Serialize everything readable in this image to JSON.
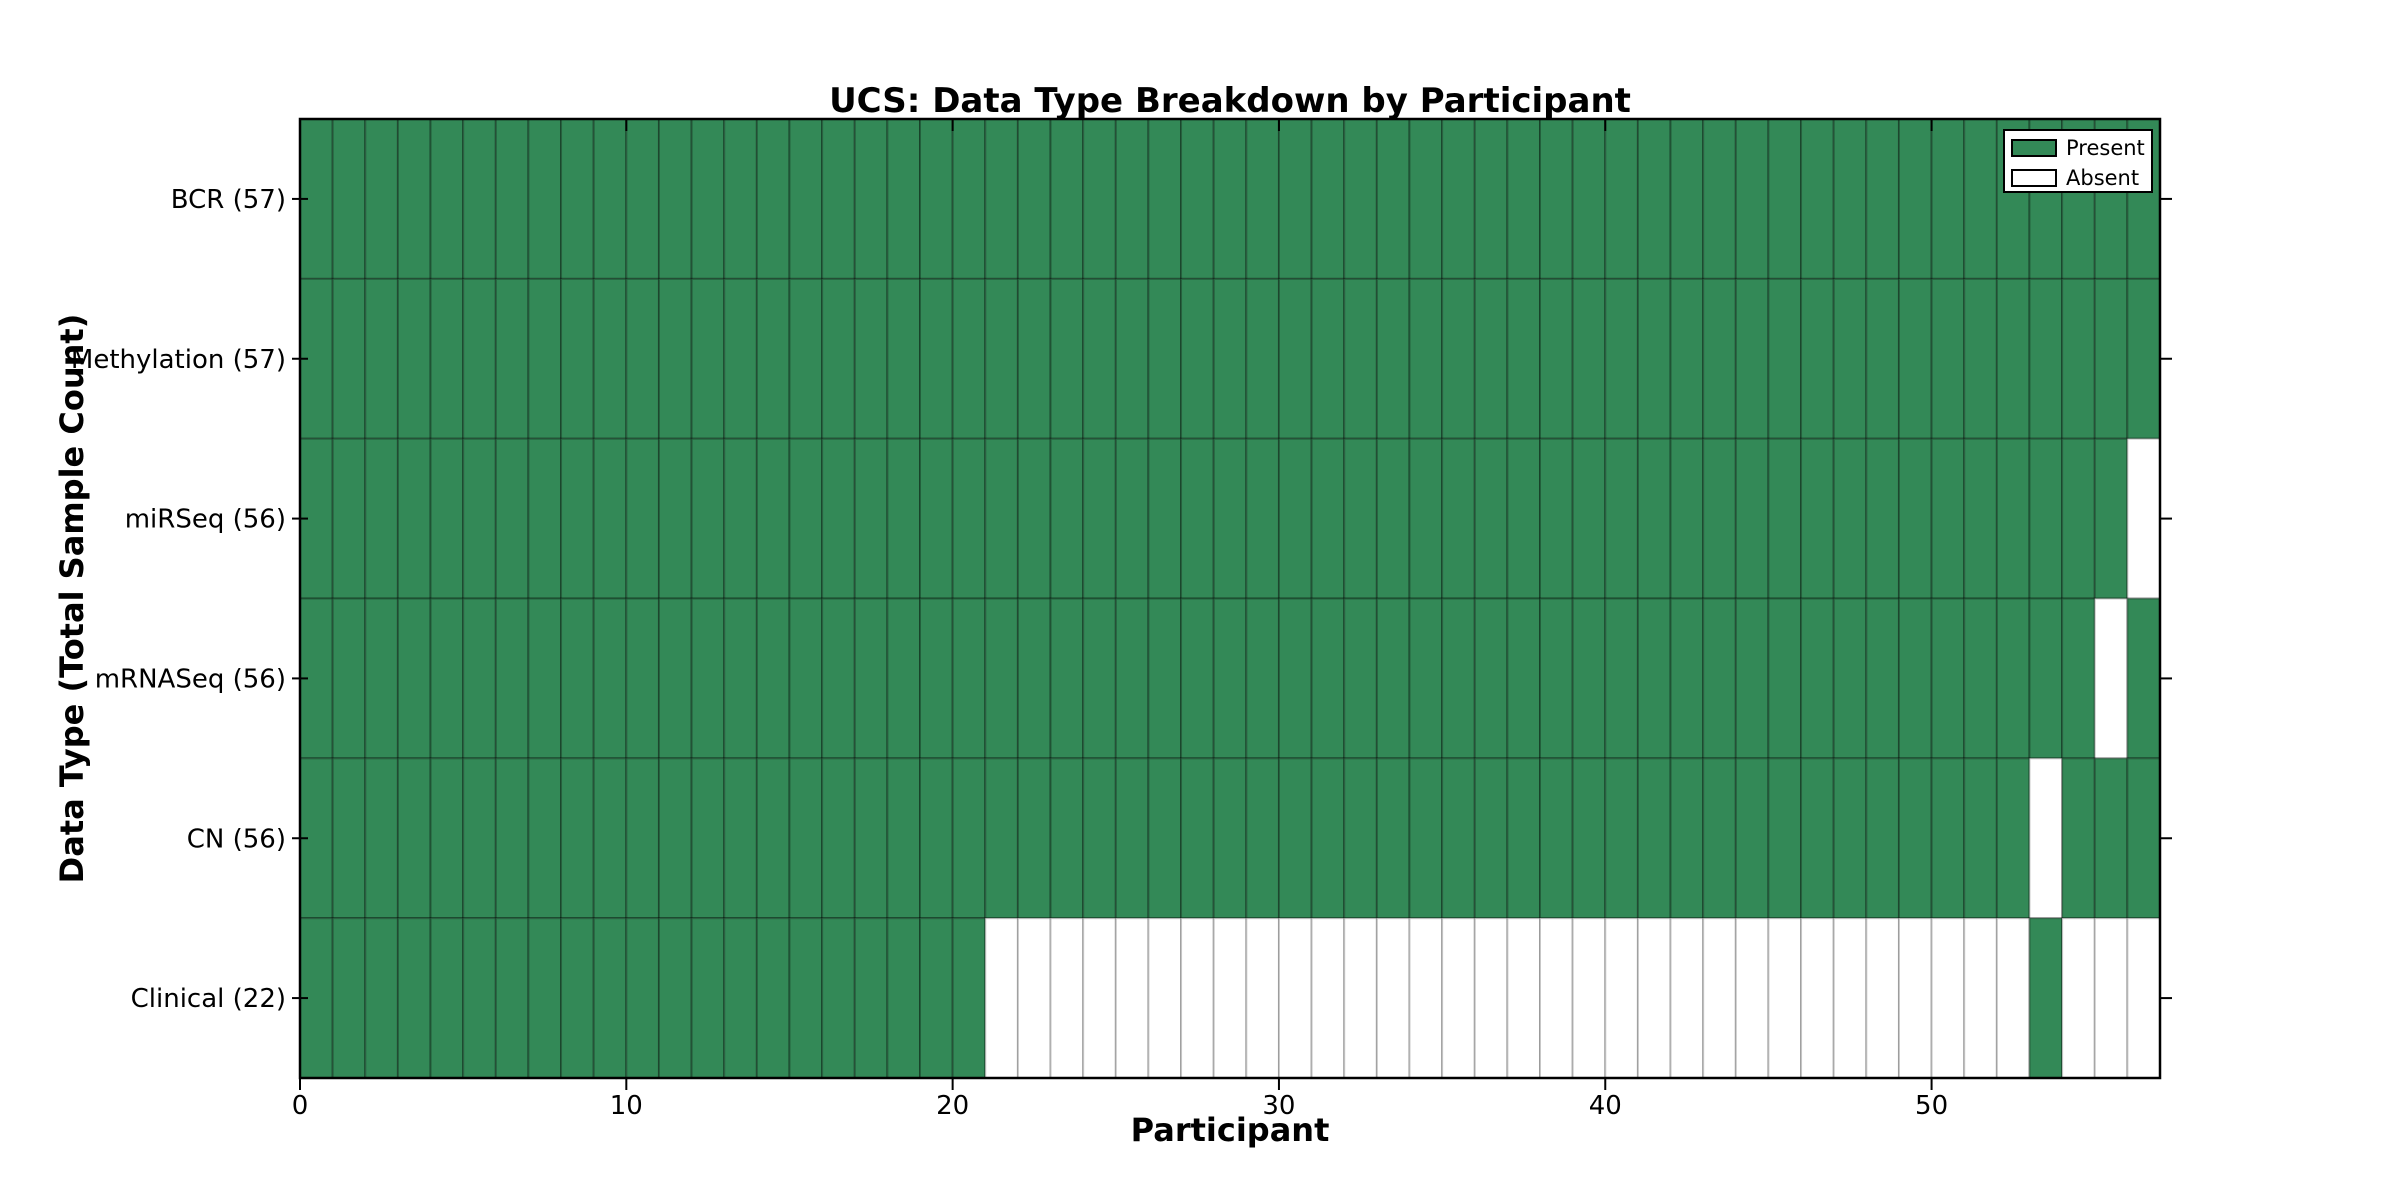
{
  "figure": {
    "title": "UCS: Data Type Breakdown by Participant",
    "xlabel": "Participant",
    "ylabel": "Data Type (Total Sample Count)"
  },
  "legend": {
    "items": [
      {
        "label": "Present",
        "swatch": "present"
      },
      {
        "label": "Absent",
        "swatch": "absent"
      }
    ]
  },
  "colors": {
    "present": "#338957",
    "absent": "#ffffff",
    "present_cell_border": "rgba(0,0,0,0.30)",
    "absent_cell_border": "rgba(0,0,0,0.22)",
    "frame": "#000000",
    "text": "#000000",
    "background": "#ffffff"
  },
  "chart_data": {
    "type": "heatmap",
    "title": "UCS: Data Type Breakdown by Participant",
    "xlabel": "Participant",
    "ylabel": "Data Type (Total Sample Count)",
    "n_participants": 57,
    "x_range": [
      0,
      57
    ],
    "x_ticks": [
      0,
      10,
      20,
      30,
      40,
      50
    ],
    "legend_entries": [
      "Present",
      "Absent"
    ],
    "legend_position": "upper right",
    "grid": false,
    "rows": [
      {
        "key": "bcr",
        "label": "BCR (57)",
        "total_samples": 57,
        "present_ranges": [
          [
            0,
            56
          ]
        ]
      },
      {
        "key": "methylation",
        "label": "Methylation (57)",
        "total_samples": 57,
        "present_ranges": [
          [
            0,
            56
          ]
        ]
      },
      {
        "key": "mirseq",
        "label": "miRSeq (56)",
        "total_samples": 56,
        "present_ranges": [
          [
            0,
            55
          ]
        ]
      },
      {
        "key": "mrnaseq",
        "label": "mRNASeq (56)",
        "total_samples": 56,
        "present_ranges": [
          [
            0,
            54
          ],
          [
            56,
            56
          ]
        ]
      },
      {
        "key": "cn",
        "label": "CN (56)",
        "total_samples": 56,
        "present_ranges": [
          [
            0,
            52
          ],
          [
            54,
            56
          ]
        ]
      },
      {
        "key": "clinical",
        "label": "Clinical (22)",
        "total_samples": 22,
        "present_ranges": [
          [
            0,
            20
          ],
          [
            53,
            53
          ]
        ]
      }
    ]
  }
}
